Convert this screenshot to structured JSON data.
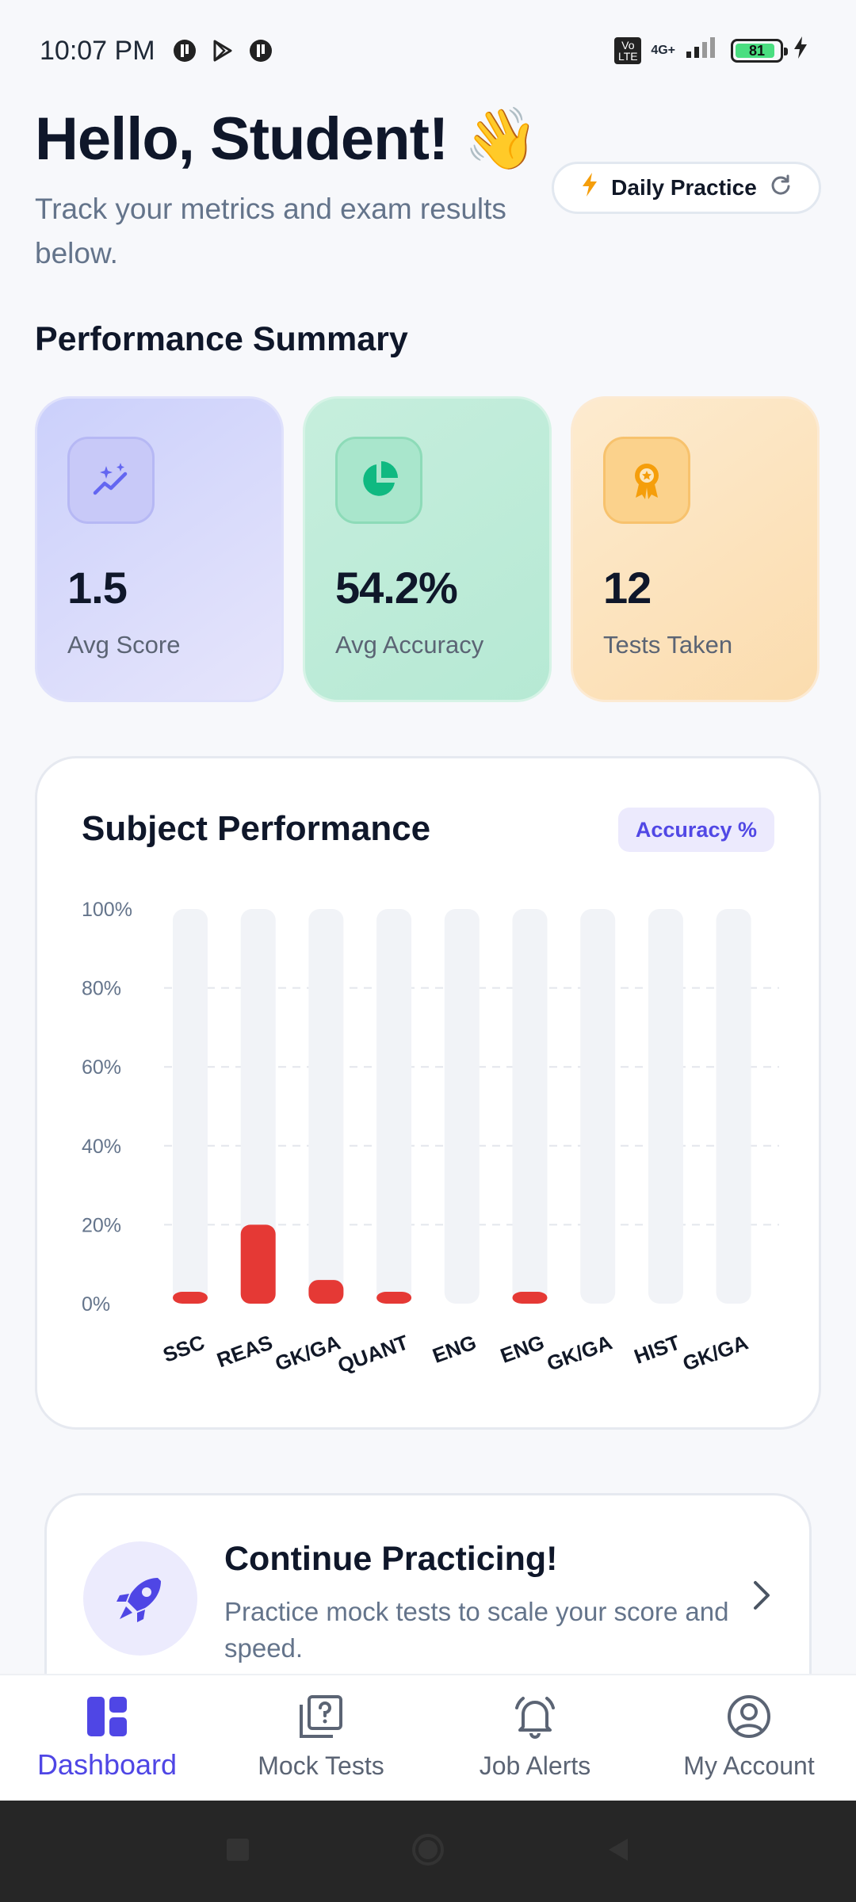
{
  "status_bar": {
    "time": "10:07 PM",
    "network": "4G+",
    "volte": "Vo LTE",
    "battery": "81"
  },
  "header": {
    "greeting": "Hello, Student! 👋",
    "subtitle": "Track your metrics and exam results below.",
    "daily_practice_label": "Daily Practice"
  },
  "summary": {
    "title": "Performance Summary",
    "cards": [
      {
        "value": "1.5",
        "label": "Avg Score",
        "icon": "sparkle-chart-icon",
        "color": "#6366f1"
      },
      {
        "value": "54.2%",
        "label": "Avg Accuracy",
        "icon": "pie-chart-icon",
        "color": "#10b981"
      },
      {
        "value": "12",
        "label": "Tests Taken",
        "icon": "award-icon",
        "color": "#f59e0b"
      }
    ]
  },
  "subject_performance": {
    "title": "Subject Performance",
    "badge": "Accuracy %"
  },
  "chart_data": {
    "type": "bar",
    "categories": [
      "SSC",
      "REAS",
      "GK/GA",
      "QUANT",
      "ENG",
      "ENG",
      "GK/GA",
      "HIST",
      "GK/GA"
    ],
    "values": [
      3,
      20,
      6,
      3,
      0,
      3,
      0,
      0,
      0
    ],
    "ylim": [
      0,
      100
    ],
    "yticks": [
      "100%",
      "80%",
      "60%",
      "40%",
      "20%",
      "0%"
    ],
    "bar_color": "#e53935",
    "track_color": "#f1f3f7"
  },
  "continue": {
    "title": "Continue Practicing!",
    "description": "Practice mock tests to scale your score and speed."
  },
  "bottom_nav": {
    "items": [
      {
        "label": "Dashboard",
        "active": true
      },
      {
        "label": "Mock Tests",
        "active": false
      },
      {
        "label": "Job Alerts",
        "active": false
      },
      {
        "label": "My Account",
        "active": false
      }
    ]
  },
  "colors": {
    "accent": "#4f46e5",
    "text_dark": "#0f172a",
    "text_muted": "#64748b"
  }
}
